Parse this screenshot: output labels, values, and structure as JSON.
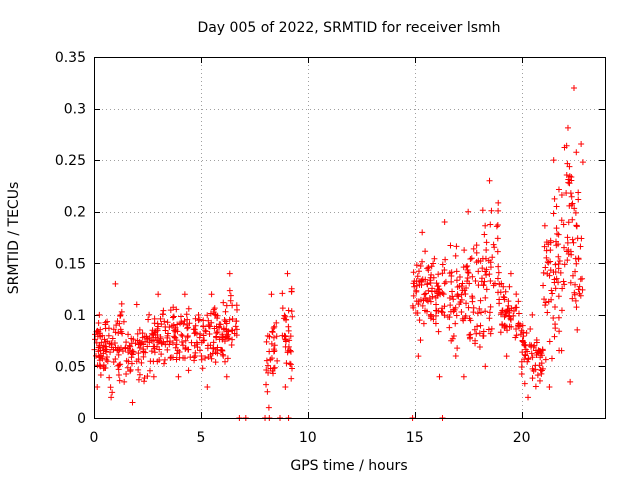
{
  "chart_data": {
    "type": "scatter",
    "title": "Day 005 of 2022, SRMTID for receiver lsmh",
    "xlabel": "GPS time / hours",
    "ylabel": "SRMTID / TECUs",
    "xlim": [
      0,
      23.9
    ],
    "ylim": [
      0,
      0.35
    ],
    "xticks": [
      0,
      5,
      10,
      15,
      20
    ],
    "xtick_labels": [
      "0",
      "5",
      "10",
      "15",
      "20"
    ],
    "yticks": [
      0,
      0.05,
      0.1,
      0.15,
      0.2,
      0.25,
      0.3,
      0.35
    ],
    "ytick_labels": [
      "0",
      "0.05",
      "0.1",
      "0.15",
      "0.2",
      "0.25",
      "0.3",
      "0.35"
    ],
    "grid": true,
    "marker": "plus",
    "color": "#ff0000",
    "segments": [
      {
        "x_start": 0.0,
        "x_end": 0.5,
        "y_min": 0.03,
        "y_max": 0.1,
        "count": 40
      },
      {
        "x_start": 0.5,
        "x_end": 1.5,
        "y_min": 0.02,
        "y_max": 0.13,
        "count": 60
      },
      {
        "x_start": 1.5,
        "x_end": 2.5,
        "y_min": 0.015,
        "y_max": 0.11,
        "count": 55
      },
      {
        "x_start": 2.5,
        "x_end": 3.5,
        "y_min": 0.04,
        "y_max": 0.12,
        "count": 60
      },
      {
        "x_start": 3.5,
        "x_end": 5.0,
        "y_min": 0.04,
        "y_max": 0.12,
        "count": 80
      },
      {
        "x_start": 5.0,
        "x_end": 6.0,
        "y_min": 0.03,
        "y_max": 0.12,
        "count": 60
      },
      {
        "x_start": 6.0,
        "x_end": 6.7,
        "y_min": 0.04,
        "y_max": 0.14,
        "count": 45
      },
      {
        "x_start": 8.0,
        "x_end": 8.6,
        "y_min": 0.01,
        "y_max": 0.12,
        "count": 30
      },
      {
        "x_start": 8.8,
        "x_end": 9.3,
        "y_min": 0.03,
        "y_max": 0.14,
        "count": 35
      },
      {
        "x_start": 14.9,
        "x_end": 15.8,
        "y_min": 0.06,
        "y_max": 0.18,
        "count": 60
      },
      {
        "x_start": 15.8,
        "x_end": 17.0,
        "y_min": 0.04,
        "y_max": 0.19,
        "count": 70
      },
      {
        "x_start": 17.0,
        "x_end": 18.0,
        "y_min": 0.04,
        "y_max": 0.2,
        "count": 60
      },
      {
        "x_start": 18.0,
        "x_end": 19.0,
        "y_min": 0.05,
        "y_max": 0.23,
        "count": 60
      },
      {
        "x_start": 19.0,
        "x_end": 20.0,
        "y_min": 0.06,
        "y_max": 0.14,
        "count": 55
      },
      {
        "x_start": 20.0,
        "x_end": 21.0,
        "y_min": 0.02,
        "y_max": 0.1,
        "count": 60
      },
      {
        "x_start": 21.0,
        "x_end": 22.0,
        "y_min": 0.03,
        "y_max": 0.25,
        "count": 70
      },
      {
        "x_start": 22.0,
        "x_end": 22.9,
        "y_min": 0.035,
        "y_max": 0.32,
        "count": 65
      }
    ],
    "zero_points_x": [
      6.8,
      7.1,
      8.0,
      8.2,
      8.7,
      9.1,
      14.9,
      16.3
    ]
  }
}
